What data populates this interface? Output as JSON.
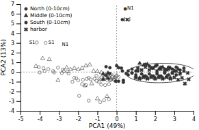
{
  "chart_data": {
    "type": "scatter",
    "xlabel": "PCA1 (49%)",
    "ylabel": "PCA2 (13%)",
    "xlim": [
      -5,
      4
    ],
    "ylim": [
      -4,
      7
    ],
    "xticks": [
      -5,
      -4,
      -3,
      -2,
      -1,
      0,
      1,
      2,
      3,
      4
    ],
    "yticks": [
      -4,
      -3,
      -2,
      -1,
      0,
      1,
      2,
      3,
      4,
      5,
      6,
      7
    ],
    "grid": false,
    "legend": "upper left",
    "series": [
      {
        "marker": "open-circle",
        "color": "#555555",
        "x": [
          -4.15,
          -3.7,
          -4.05,
          -3.8,
          -3.55,
          -3.3,
          -3.05,
          -2.8,
          -2.55,
          -4.0,
          -3.75,
          -3.25,
          -2.85,
          -2.5,
          -2.2,
          -2.0,
          -2.1,
          -1.75,
          -1.55,
          -1.35,
          -1.15,
          -1.05,
          -0.9,
          -0.7,
          -0.5,
          -0.3,
          -0.1,
          -2.3,
          -1.8,
          -1.95,
          -1.6,
          -0.8,
          -0.6,
          -0.4,
          -1.45,
          -1.05,
          -0.8,
          -0.6,
          -0.45,
          -0.25,
          -0.05,
          0.1,
          -0.15,
          -0.35,
          -1.45,
          -0.85,
          -0.65,
          -0.4
        ],
        "values": [
          3.05,
          3.0,
          0.5,
          0.4,
          0.3,
          0.1,
          0.45,
          0.25,
          0.05,
          -0.05,
          0.1,
          -0.05,
          -0.1,
          -0.15,
          -0.6,
          -0.85,
          -0.65,
          -0.8,
          -0.7,
          -0.75,
          -0.7,
          -0.9,
          -0.75,
          -0.75,
          -0.8,
          -0.8,
          -0.8,
          -1.0,
          -1.25,
          -2.45,
          -1.35,
          -1.3,
          -1.35,
          -1.25,
          -0.6,
          -0.4,
          -0.55,
          -0.5,
          -0.45,
          -0.5,
          -0.45,
          -0.5,
          -0.8,
          -0.85,
          -2.95,
          -3.1,
          -2.9,
          -2.8
        ]
      },
      {
        "marker": "open-triangle",
        "color": "#555555",
        "x": [
          -4.2,
          -3.85,
          -3.5,
          -3.05,
          -2.75,
          -2.6,
          -2.4,
          -2.2,
          -2.0,
          -1.8,
          -1.6,
          -1.4,
          -1.2,
          -1.0,
          -0.8,
          -0.6,
          -0.4,
          -0.2,
          -0.0,
          -0.1,
          -0.3,
          -0.9,
          -1.3,
          -1.65,
          -1.0,
          -0.5
        ],
        "values": [
          0.6,
          1.4,
          1.3,
          -0.85,
          0.1,
          0.45,
          0.25,
          0.4,
          0.25,
          0.4,
          0.65,
          0.75,
          0.1,
          0.05,
          -0.05,
          -0.3,
          -0.5,
          -0.4,
          -0.35,
          -0.6,
          -0.7,
          -1.0,
          -1.2,
          -1.4,
          -2.75,
          -2.5
        ]
      },
      {
        "marker": "circle",
        "color": "#333333",
        "x": [
          -0.0,
          0.25,
          -0.05,
          0.3,
          0.5
        ],
        "values": [
          0.65,
          0.4,
          -0.95,
          0.1,
          -0.15
        ]
      },
      {
        "marker": "circle",
        "color": "#333333",
        "x": [
          -0.55,
          -0.35,
          -0.55,
          -0.35,
          0.1,
          0.35,
          0.1,
          0.35
        ],
        "values": [
          0.55,
          0.45,
          -0.35,
          -0.15,
          0.45,
          -0.85,
          -0.95,
          -1.05
        ]
      },
      {
        "marker": "triangle",
        "color": "#333333",
        "x": [
          -0.7,
          -0.45,
          -0.7,
          -0.45
        ],
        "values": [
          -0.2,
          -0.1,
          -0.75,
          -0.65
        ]
      },
      {
        "marker": "circle",
        "color": "#333333",
        "x": [
          0.45,
          0.3
        ],
        "values": [
          6.5,
          5.4
        ]
      },
      {
        "marker": "x",
        "color": "#333333",
        "x": [
          0.55
        ],
        "values": [
          5.4
        ]
      },
      {
        "name": "North (0-10cm)",
        "marker": "circle",
        "color": "#333333",
        "x": [
          1.5,
          1.7,
          1.9,
          2.1,
          2.3,
          2.5,
          2.7,
          2.9,
          3.1,
          3.3,
          3.5,
          1.3,
          1.5,
          1.7,
          1.9,
          2.1,
          2.3,
          2.5,
          2.7,
          2.9,
          3.1,
          3.3,
          1.1,
          0.8
        ],
        "values": [
          0.8,
          0.6,
          0.45,
          0.7,
          0.5,
          0.3,
          0.5,
          0.3,
          0.5,
          0.2,
          0.4,
          -0.2,
          -0.4,
          -0.2,
          -0.4,
          -0.2,
          -0.4,
          -0.1,
          -0.3,
          -0.1,
          -0.3,
          -0.1,
          0.1,
          -0.1
        ]
      },
      {
        "name": "Middle (0-10cm)",
        "marker": "triangle",
        "color": "#333333",
        "x": [
          1.2,
          1.4,
          1.6,
          1.8,
          2.0,
          2.2,
          2.4,
          2.6,
          2.8,
          3.0,
          3.2,
          1.0,
          1.2,
          1.4,
          1.6,
          1.8,
          2.0,
          2.2,
          2.4,
          2.6,
          2.8
        ],
        "values": [
          0.9,
          0.7,
          0.8,
          0.4,
          0.6,
          0.3,
          0.5,
          0.2,
          0.4,
          0.1,
          0.3,
          -0.45,
          -0.6,
          -0.45,
          -0.6,
          -0.45,
          -0.6,
          -0.45,
          -0.6,
          -0.45,
          -0.6
        ]
      },
      {
        "name": "South (0-10cm)",
        "marker": "circle",
        "color": "#333333",
        "x": [
          0.6,
          0.8,
          1.0,
          0.6,
          0.8,
          1.0
        ],
        "values": [
          0.1,
          0.3,
          0.1,
          -0.3,
          -0.1,
          -0.3
        ]
      },
      {
        "name": "harbor",
        "marker": "x",
        "color": "#333333",
        "x": [
          1.1,
          1.3,
          1.5,
          1.7,
          1.9,
          2.1,
          2.3,
          2.5,
          2.7,
          2.9,
          3.1,
          3.3,
          3.5,
          3.7,
          1.0,
          1.2,
          1.4,
          1.6,
          1.8,
          2.0,
          2.2,
          2.4,
          2.6,
          2.8,
          3.0,
          3.2,
          3.4,
          3.55,
          3.75
        ],
        "values": [
          0.4,
          0.2,
          0.5,
          0.2,
          0.4,
          0.1,
          0.3,
          0.0,
          0.3,
          -0.1,
          0.1,
          -0.2,
          0.1,
          -0.1,
          -0.6,
          -0.7,
          -0.55,
          -0.7,
          -0.55,
          -0.7,
          -0.55,
          -0.7,
          -0.55,
          -0.7,
          -0.55,
          -0.8,
          -0.6,
          -1.2,
          -0.75
        ]
      }
    ],
    "annotations": [
      {
        "text": "S1",
        "x": -4.55,
        "y": 3.05
      },
      {
        "text": "S1",
        "x": -3.55,
        "y": 3.05
      },
      {
        "text": "N1",
        "x": -2.85,
        "y": 2.8
      },
      {
        "text": "N1",
        "x": 0.55,
        "y": 6.55
      },
      {
        "text": "J",
        "x": 0.38,
        "y": 5.45
      },
      {
        "text": "J",
        "x": 0.65,
        "y": 5.45
      }
    ],
    "ellipse": {
      "center": [
        2.3,
        -0.1
      ],
      "width": 3.6,
      "height": 2.0,
      "angle": 3,
      "color": "#444444"
    },
    "hlines": [
      0
    ],
    "vlines": [
      0
    ]
  }
}
